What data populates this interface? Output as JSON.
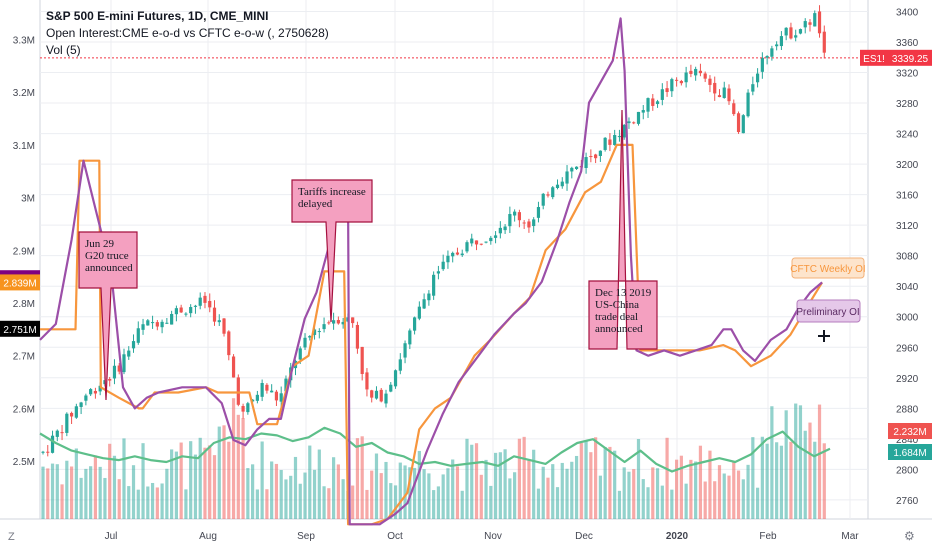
{
  "legend": {
    "title": "S&P 500 E-mini Futures, 1D, CME_MINI",
    "line2": "Open Interest:CME e-o-d vs CFTC e-o-w (, 2750628)",
    "line3": "Vol (5)"
  },
  "corner": {
    "left": "Z",
    "right": "⚙"
  },
  "colors": {
    "up": "#26a69a",
    "down": "#ef5350",
    "oi_daily": "#9c4fa8",
    "oi_weekly": "#f7963d",
    "vol_ma": "#5dbf8a",
    "annotation_fill": "#f4a0c0",
    "annotation_stroke": "#a5113f",
    "price_badge": "#f23645",
    "grid": "#eceef2"
  },
  "chart_data": {
    "type": "line",
    "title": "S&P 500 E-mini Futures, 1D, CME_MINI",
    "x_ticks": [
      "Jul",
      "Aug",
      "Sep",
      "Oct",
      "Nov",
      "Dec",
      "2020",
      "Feb",
      "Mar"
    ],
    "right_axis": {
      "ticks": [
        3400,
        3360,
        3320,
        3280,
        3240,
        3200,
        3160,
        3120,
        3080,
        3040,
        3000,
        2960,
        2920,
        2880,
        2840,
        2800,
        2760
      ],
      "range": [
        2735,
        3415
      ]
    },
    "left_axis": {
      "ticks": [
        "3.3M",
        "3.2M",
        "3.1M",
        "3M",
        "2.9M",
        "2.8M",
        "2.7M",
        "2.6M",
        "2.5M"
      ],
      "tick_values": [
        3.3,
        3.2,
        3.1,
        3.0,
        2.9,
        2.8,
        2.7,
        2.6,
        2.5
      ],
      "range": [
        2.39,
        3.375
      ]
    },
    "price_line": {
      "value": 3339.25,
      "label": "ES1!",
      "text": "3339.25"
    },
    "left_badges": [
      {
        "text": "2.847M",
        "value": 2.847,
        "color": "#800080"
      },
      {
        "text": "2.839M",
        "value": 2.839,
        "color": "#f7931e"
      },
      {
        "text": "2.751M",
        "value": 2.751,
        "color": "#000000"
      }
    ],
    "right_badges": [
      {
        "text": "2.232M",
        "color": "#ef5350"
      },
      {
        "text": "1.684M",
        "color": "#26a69a"
      }
    ],
    "series": [
      {
        "name": "Open Interest (CME e-o-d)",
        "unit": "M",
        "points": [
          [
            0.0,
            2.73
          ],
          [
            0.02,
            2.76
          ],
          [
            0.04,
            2.92
          ],
          [
            0.055,
            3.07
          ],
          [
            0.07,
            2.98
          ],
          [
            0.09,
            2.86
          ],
          [
            0.105,
            2.64
          ],
          [
            0.12,
            2.6
          ],
          [
            0.135,
            2.62
          ],
          [
            0.15,
            2.63
          ],
          [
            0.18,
            2.64
          ],
          [
            0.21,
            2.64
          ],
          [
            0.23,
            2.61
          ],
          [
            0.245,
            2.54
          ],
          [
            0.26,
            2.53
          ],
          [
            0.275,
            2.56
          ],
          [
            0.29,
            2.58
          ],
          [
            0.305,
            2.58
          ],
          [
            0.32,
            2.68
          ],
          [
            0.335,
            2.77
          ],
          [
            0.35,
            2.82
          ],
          [
            0.375,
            2.96
          ],
          [
            0.39,
            2.98
          ],
          [
            0.392,
            2.38
          ],
          [
            0.41,
            2.38
          ],
          [
            0.43,
            2.38
          ],
          [
            0.45,
            2.4
          ],
          [
            0.465,
            2.42
          ],
          [
            0.49,
            2.52
          ],
          [
            0.51,
            2.59
          ],
          [
            0.53,
            2.65
          ],
          [
            0.555,
            2.7
          ],
          [
            0.575,
            2.74
          ],
          [
            0.6,
            2.78
          ],
          [
            0.615,
            2.8
          ],
          [
            0.635,
            2.84
          ],
          [
            0.655,
            2.92
          ],
          [
            0.67,
            2.99
          ],
          [
            0.685,
            3.05
          ],
          [
            0.695,
            3.18
          ],
          [
            0.71,
            3.22
          ],
          [
            0.725,
            3.26
          ],
          [
            0.735,
            3.34
          ],
          [
            0.74,
            3.24
          ],
          [
            0.748,
            2.89
          ],
          [
            0.755,
            2.71
          ],
          [
            0.77,
            2.7
          ],
          [
            0.79,
            2.71
          ],
          [
            0.81,
            2.7
          ],
          [
            0.83,
            2.71
          ],
          [
            0.85,
            2.72
          ],
          [
            0.865,
            2.75
          ],
          [
            0.875,
            2.75
          ],
          [
            0.89,
            2.71
          ],
          [
            0.905,
            2.69
          ],
          [
            0.925,
            2.73
          ],
          [
            0.945,
            2.75
          ],
          [
            0.96,
            2.79
          ],
          [
            0.975,
            2.82
          ],
          [
            0.99,
            2.839
          ]
        ]
      },
      {
        "name": "Open Interest (CFTC e-o-w)",
        "unit": "M",
        "points": [
          [
            0.0,
            2.75
          ],
          [
            0.03,
            2.75
          ],
          [
            0.045,
            2.75
          ],
          [
            0.05,
            3.07
          ],
          [
            0.075,
            3.07
          ],
          [
            0.077,
            2.64
          ],
          [
            0.1,
            2.62
          ],
          [
            0.125,
            2.6
          ],
          [
            0.13,
            2.6
          ],
          [
            0.145,
            2.63
          ],
          [
            0.175,
            2.63
          ],
          [
            0.21,
            2.64
          ],
          [
            0.225,
            2.63
          ],
          [
            0.25,
            2.63
          ],
          [
            0.265,
            2.63
          ],
          [
            0.275,
            2.57
          ],
          [
            0.3,
            2.57
          ],
          [
            0.32,
            2.68
          ],
          [
            0.34,
            2.7
          ],
          [
            0.36,
            2.86
          ],
          [
            0.385,
            2.86
          ],
          [
            0.39,
            2.38
          ],
          [
            0.42,
            2.38
          ],
          [
            0.44,
            2.39
          ],
          [
            0.465,
            2.44
          ],
          [
            0.48,
            2.56
          ],
          [
            0.5,
            2.6
          ],
          [
            0.52,
            2.62
          ],
          [
            0.55,
            2.7
          ],
          [
            0.57,
            2.73
          ],
          [
            0.6,
            2.78
          ],
          [
            0.62,
            2.81
          ],
          [
            0.64,
            2.9
          ],
          [
            0.665,
            2.94
          ],
          [
            0.69,
            3.01
          ],
          [
            0.71,
            3.03
          ],
          [
            0.73,
            3.1
          ],
          [
            0.75,
            3.1
          ],
          [
            0.76,
            2.71
          ],
          [
            0.79,
            2.71
          ],
          [
            0.81,
            2.71
          ],
          [
            0.835,
            2.71
          ],
          [
            0.865,
            2.72
          ],
          [
            0.88,
            2.71
          ],
          [
            0.9,
            2.68
          ],
          [
            0.925,
            2.7
          ],
          [
            0.95,
            2.74
          ],
          [
            0.97,
            2.79
          ],
          [
            0.99,
            2.839
          ]
        ]
      },
      {
        "name": "Vol (5)",
        "unit": "volume MA",
        "points": [
          [
            0.0,
            0.45
          ],
          [
            0.02,
            0.4
          ],
          [
            0.04,
            0.36
          ],
          [
            0.06,
            0.34
          ],
          [
            0.08,
            0.32
          ],
          [
            0.1,
            0.31
          ],
          [
            0.12,
            0.33
          ],
          [
            0.14,
            0.31
          ],
          [
            0.16,
            0.3
          ],
          [
            0.18,
            0.33
          ],
          [
            0.2,
            0.32
          ],
          [
            0.22,
            0.4
          ],
          [
            0.24,
            0.43
          ],
          [
            0.26,
            0.42
          ],
          [
            0.28,
            0.45
          ],
          [
            0.3,
            0.44
          ],
          [
            0.32,
            0.41
          ],
          [
            0.34,
            0.43
          ],
          [
            0.36,
            0.48
          ],
          [
            0.38,
            0.45
          ],
          [
            0.4,
            0.38
          ],
          [
            0.42,
            0.4
          ],
          [
            0.44,
            0.35
          ],
          [
            0.46,
            0.33
          ],
          [
            0.48,
            0.29
          ],
          [
            0.5,
            0.3
          ],
          [
            0.52,
            0.28
          ],
          [
            0.54,
            0.29
          ],
          [
            0.56,
            0.3
          ],
          [
            0.58,
            0.28
          ],
          [
            0.6,
            0.33
          ],
          [
            0.62,
            0.31
          ],
          [
            0.64,
            0.29
          ],
          [
            0.66,
            0.35
          ],
          [
            0.68,
            0.4
          ],
          [
            0.7,
            0.42
          ],
          [
            0.72,
            0.36
          ],
          [
            0.74,
            0.3
          ],
          [
            0.76,
            0.36
          ],
          [
            0.78,
            0.29
          ],
          [
            0.8,
            0.25
          ],
          [
            0.82,
            0.28
          ],
          [
            0.84,
            0.3
          ],
          [
            0.86,
            0.32
          ],
          [
            0.88,
            0.3
          ],
          [
            0.9,
            0.34
          ],
          [
            0.92,
            0.42
          ],
          [
            0.94,
            0.46
          ],
          [
            0.96,
            0.38
          ],
          [
            0.98,
            0.33
          ],
          [
            1.0,
            0.37
          ]
        ]
      }
    ],
    "annotations": [
      {
        "lines": [
          "Jun 29",
          "G20 truce",
          "announced"
        ]
      },
      {
        "lines": [
          "Tariffs increase",
          "delayed"
        ]
      },
      {
        "lines": [
          "Dec 13 2019",
          "US-China",
          "trade deal",
          "announced"
        ]
      }
    ],
    "labels": [
      {
        "text": "CFTC Weekly OI"
      },
      {
        "text": "Preliminary OI"
      }
    ]
  }
}
